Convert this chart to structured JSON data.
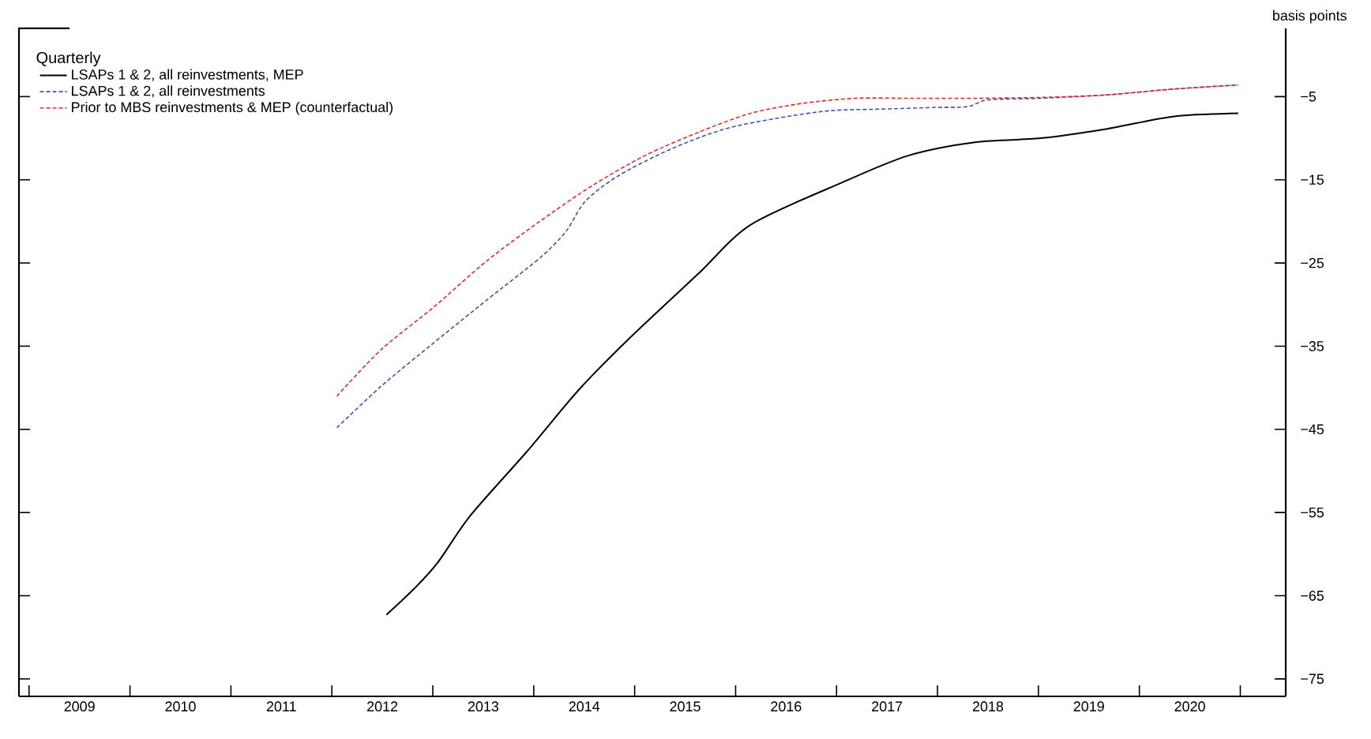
{
  "chart_data": {
    "type": "line",
    "ylabel": "basis points",
    "legend_title": "Quarterly",
    "legend": "top left",
    "grid": false,
    "marker": "none",
    "xlim": [
      2008.9,
      2021.45
    ],
    "ylim": [
      -77.1,
      3.2
    ],
    "xticks": [
      {
        "value": 2009,
        "label": null
      },
      {
        "value": 2010,
        "label": null
      },
      {
        "value": 2011,
        "label": null
      },
      {
        "value": 2012,
        "label": null
      },
      {
        "value": 2013,
        "label": null
      },
      {
        "value": 2014,
        "label": null
      },
      {
        "value": 2015,
        "label": null
      },
      {
        "value": 2016,
        "label": null
      },
      {
        "value": 2017,
        "label": null
      },
      {
        "value": 2018,
        "label": null
      },
      {
        "value": 2019,
        "label": null
      },
      {
        "value": 2020,
        "label": null
      },
      {
        "value": 2021,
        "label": null
      },
      {
        "value": 2009.5,
        "label": "2009"
      },
      {
        "value": 2010.5,
        "label": "2010"
      },
      {
        "value": 2011.5,
        "label": "2011"
      },
      {
        "value": 2012.5,
        "label": "2012"
      },
      {
        "value": 2013.5,
        "label": "2013"
      },
      {
        "value": 2014.5,
        "label": "2014"
      },
      {
        "value": 2015.5,
        "label": "2015"
      },
      {
        "value": 2016.5,
        "label": "2016"
      },
      {
        "value": 2017.5,
        "label": "2017"
      },
      {
        "value": 2018.5,
        "label": "2018"
      },
      {
        "value": 2019.5,
        "label": "2019"
      },
      {
        "value": 2020.5,
        "label": "2020"
      }
    ],
    "yticks": [
      {
        "value": -5,
        "label": "−5"
      },
      {
        "value": -15,
        "label": "−15"
      },
      {
        "value": -25,
        "label": "−25"
      },
      {
        "value": -35,
        "label": "−35"
      },
      {
        "value": -45,
        "label": "−45"
      },
      {
        "value": -55,
        "label": "−55"
      },
      {
        "value": -65,
        "label": "−65"
      },
      {
        "value": -75,
        "label": "−75"
      }
    ],
    "series": [
      {
        "name": "LSAPs 1 & 2, all reinvestments, MEP",
        "color": "#000000",
        "line_style": "solid",
        "x": [
          2012.54,
          2012.82,
          2013.05,
          2013.37,
          2013.93,
          2014.45,
          2014.97,
          2015.63,
          2016.15,
          2017.06,
          2017.71,
          2018.37,
          2019.02,
          2019.67,
          2020.33,
          2020.98
        ],
        "values": [
          -67.3,
          -64.1,
          -61.0,
          -55.4,
          -47.7,
          -40.2,
          -33.8,
          -26.3,
          -20.4,
          -15.3,
          -12.1,
          -10.5,
          -10.0,
          -8.9,
          -7.4,
          -7.0
        ]
      },
      {
        "name": "LSAPs 1 & 2, all reinvestments",
        "color": "#3a55b4",
        "line_style": "dashed",
        "x": [
          2012.05,
          2012.49,
          2013.01,
          2013.53,
          2014.06,
          2014.32,
          2014.51,
          2014.84,
          2015.36,
          2015.89,
          2016.41,
          2016.93,
          2017.45,
          2017.98,
          2018.3,
          2018.5,
          2019.02,
          2019.67,
          2020.33,
          2020.98
        ],
        "values": [
          -44.8,
          -39.8,
          -34.6,
          -29.5,
          -24.4,
          -21.2,
          -17.6,
          -14.5,
          -11.3,
          -8.9,
          -7.6,
          -6.7,
          -6.5,
          -6.3,
          -6.2,
          -5.4,
          -5.2,
          -4.8,
          -4.1,
          -3.6
        ]
      },
      {
        "name": "Prior to MBS reinvestments & MEP (counterfactual)",
        "color": "#e8272a",
        "line_style": "dashed",
        "x": [
          2012.05,
          2012.49,
          2013.01,
          2013.53,
          2014.06,
          2014.58,
          2015.1,
          2015.63,
          2016.15,
          2016.67,
          2017.19,
          2017.71,
          2018.37,
          2019.02,
          2019.67,
          2020.33,
          2020.98
        ],
        "values": [
          -41.0,
          -35.4,
          -30.3,
          -24.8,
          -20.0,
          -15.7,
          -12.1,
          -9.3,
          -7.0,
          -5.8,
          -5.2,
          -5.2,
          -5.2,
          -5.1,
          -4.8,
          -4.1,
          -3.6
        ]
      }
    ]
  }
}
